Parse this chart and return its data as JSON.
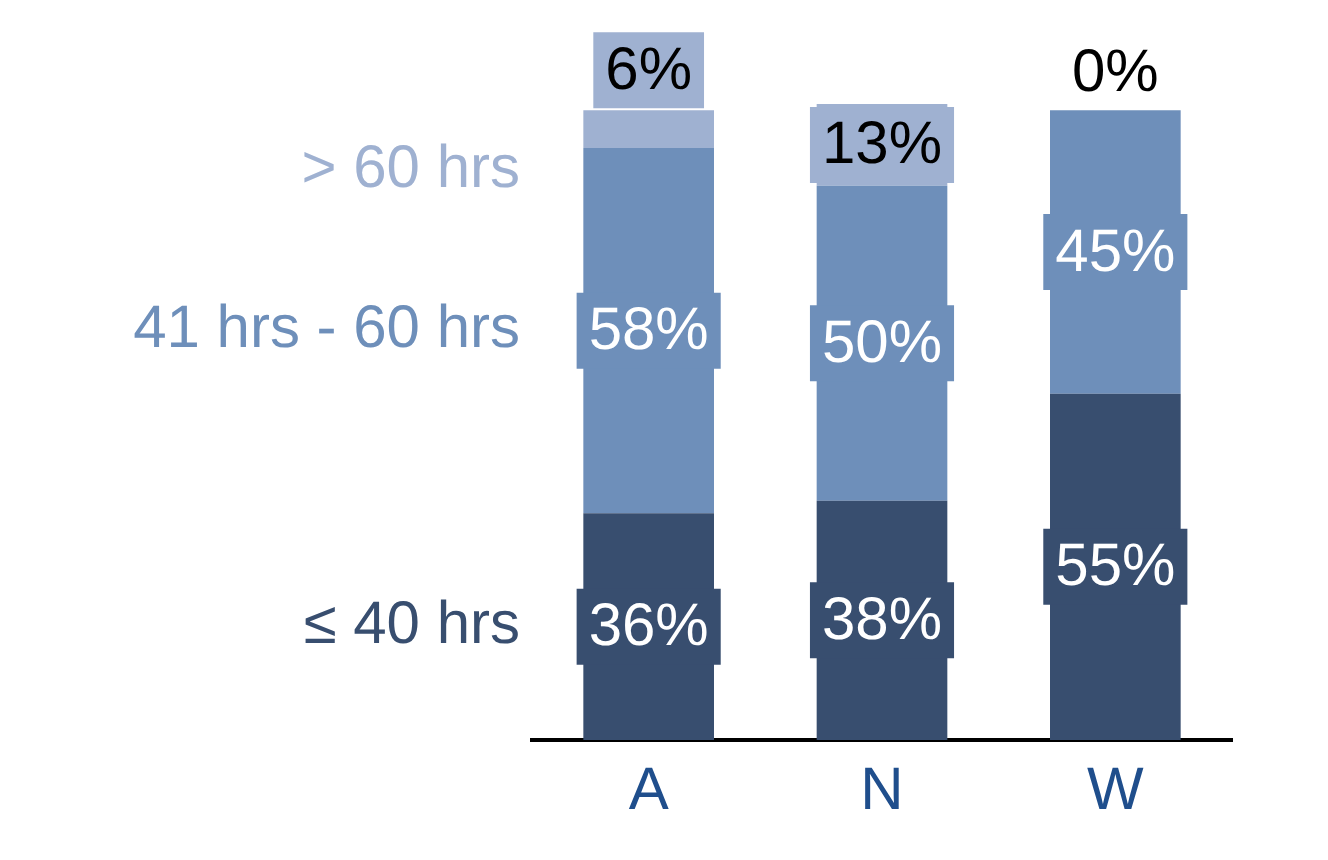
{
  "chart_data": {
    "type": "bar",
    "stacked": true,
    "legend": "left",
    "grid": false,
    "categories": [
      "A",
      "N",
      "W"
    ],
    "series": [
      {
        "name": "≤ 40 hrs",
        "color": "#384e6f",
        "values": [
          36,
          38,
          55
        ],
        "value_labels": [
          "36%",
          "38%",
          "55%"
        ]
      },
      {
        "name": "41 hrs - 60 hrs",
        "color": "#6e8fba",
        "values": [
          58,
          50,
          45
        ],
        "value_labels": [
          "58%",
          "50%",
          "45%"
        ]
      },
      {
        "name": "> 60 hrs",
        "color": "#9fb1d1",
        "values": [
          6,
          13,
          0
        ],
        "value_labels": [
          "6%",
          "13%",
          "0%"
        ]
      }
    ]
  }
}
